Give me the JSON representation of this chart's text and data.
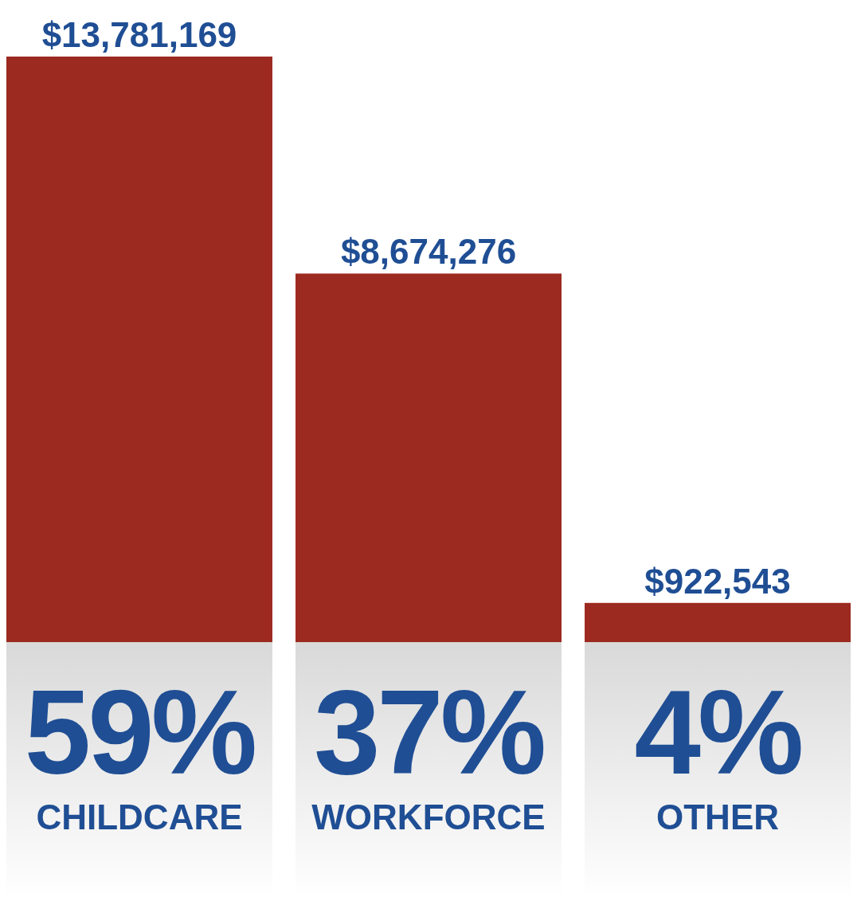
{
  "chart_data": {
    "type": "bar",
    "categories": [
      "CHILDCARE",
      "WORKFORCE",
      "OTHER"
    ],
    "values": [
      13781169,
      8674276,
      922543
    ],
    "color": "#9c2a20",
    "value_labels": [
      "$13,781,169",
      "$8,674,276",
      "$922,543"
    ],
    "annotations": [
      "59%",
      "37%",
      "4%"
    ]
  }
}
